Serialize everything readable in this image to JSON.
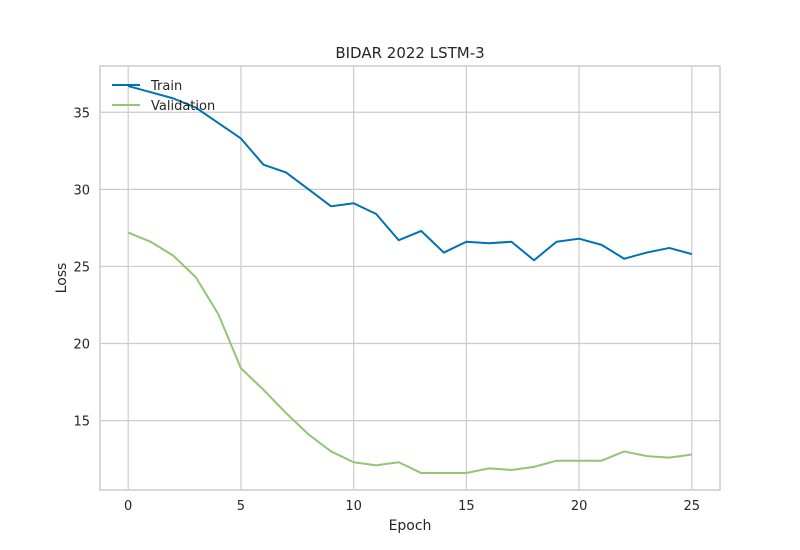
{
  "chart_data": {
    "type": "line",
    "title": "BIDAR 2022 LSTM-3",
    "xlabel": "Epoch",
    "ylabel": "Loss",
    "xlim": [
      -1.25,
      26.25
    ],
    "ylim": [
      10.5,
      38
    ],
    "xticks": [
      0,
      5,
      10,
      15,
      20,
      25
    ],
    "yticks": [
      15,
      20,
      25,
      30,
      35
    ],
    "grid": true,
    "legend_position": "top-left",
    "x": [
      0,
      1,
      2,
      3,
      4,
      5,
      6,
      7,
      8,
      9,
      10,
      11,
      12,
      13,
      14,
      15,
      16,
      17,
      18,
      19,
      20,
      21,
      22,
      23,
      24,
      25
    ],
    "series": [
      {
        "name": "Train",
        "color": "#0072B2",
        "values": [
          36.7,
          36.3,
          35.9,
          35.3,
          34.3,
          33.3,
          31.6,
          31.1,
          30.0,
          28.9,
          29.1,
          28.4,
          26.7,
          27.3,
          25.9,
          26.6,
          26.5,
          26.6,
          25.4,
          26.6,
          26.8,
          26.4,
          25.5,
          25.9,
          26.2,
          25.8
        ]
      },
      {
        "name": "Validation",
        "color": "#93C572",
        "values": [
          27.2,
          26.6,
          25.7,
          24.3,
          21.9,
          18.4,
          17.0,
          15.5,
          14.1,
          13.0,
          12.3,
          12.1,
          12.3,
          11.6,
          11.6,
          11.6,
          11.9,
          11.8,
          12.0,
          12.4,
          12.4,
          12.4,
          13.0,
          12.7,
          12.6,
          12.8
        ]
      }
    ]
  }
}
